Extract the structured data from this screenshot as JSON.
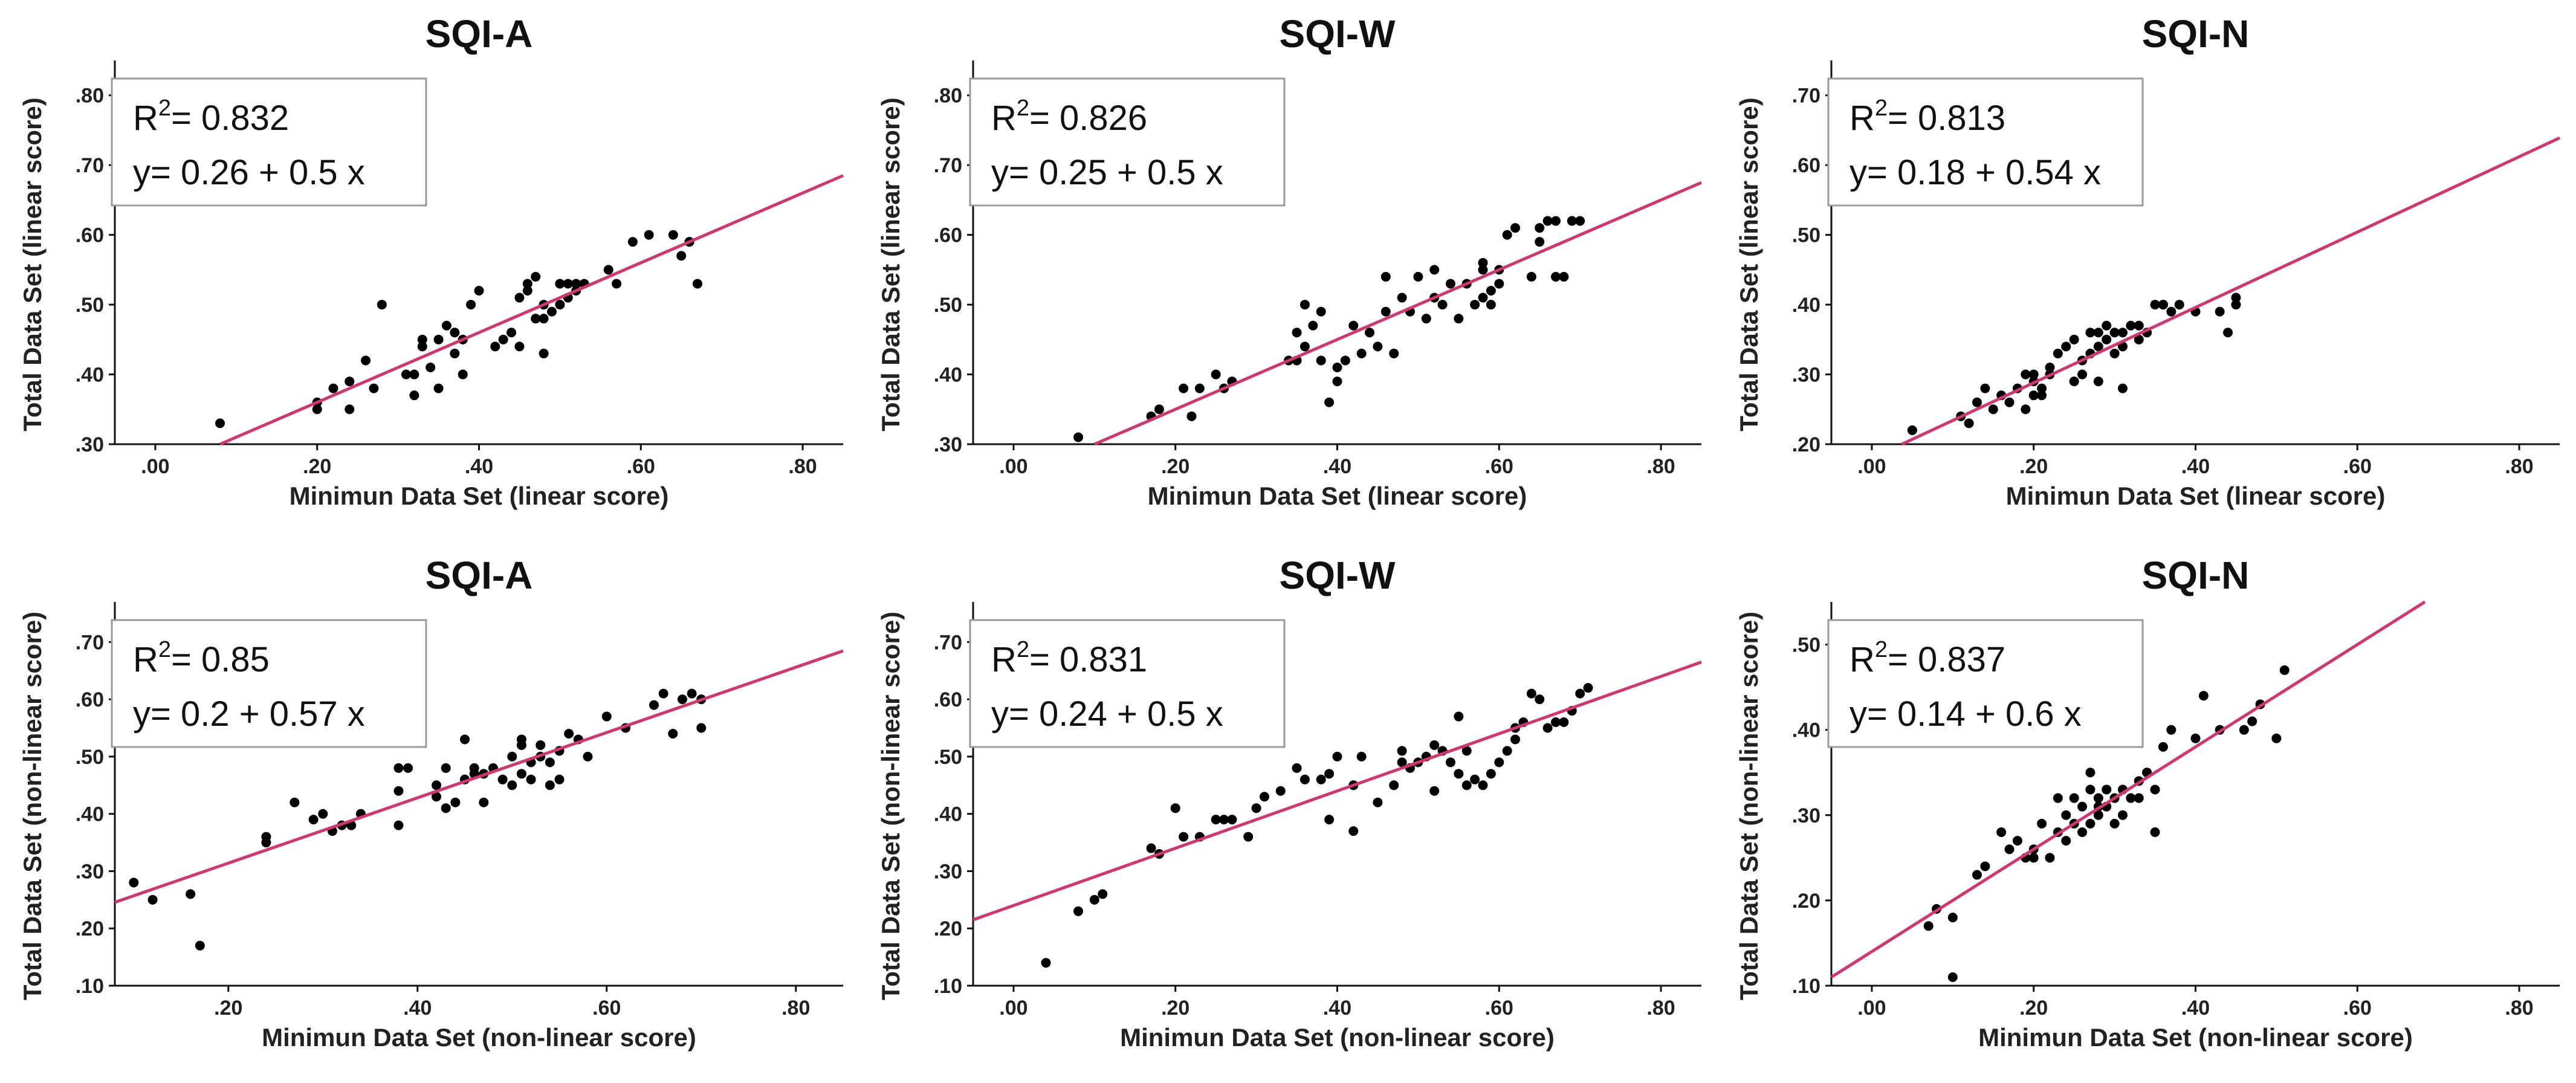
{
  "chart_data": [
    {
      "id": "a",
      "type": "scatter",
      "title": "SQI-A",
      "xlabel": "Minimun Data Set (linear score)",
      "ylabel": "Total Data Set (linear score)",
      "xlim": [
        -0.05,
        0.85
      ],
      "ylim": [
        0.3,
        0.85
      ],
      "xticks": [
        ".00",
        ".20",
        ".40",
        ".60",
        ".80"
      ],
      "xtick_values": [
        0,
        0.2,
        0.4,
        0.6,
        0.8
      ],
      "yticks": [
        ".30",
        ".40",
        ".50",
        ".60",
        ".70",
        ".80"
      ],
      "ytick_values": [
        0.3,
        0.4,
        0.5,
        0.6,
        0.7,
        0.8
      ],
      "r2_label": "R",
      "r2_sup": "2",
      "r2_value": "= 0.832",
      "equation": "y= 0.26 + 0.5 x",
      "fit": {
        "intercept": 0.26,
        "slope": 0.5
      },
      "x": [
        0.08,
        0.2,
        0.2,
        0.22,
        0.24,
        0.24,
        0.26,
        0.27,
        0.28,
        0.31,
        0.32,
        0.32,
        0.33,
        0.33,
        0.34,
        0.35,
        0.35,
        0.36,
        0.37,
        0.37,
        0.38,
        0.38,
        0.39,
        0.4,
        0.42,
        0.43,
        0.44,
        0.45,
        0.45,
        0.46,
        0.46,
        0.47,
        0.47,
        0.48,
        0.48,
        0.48,
        0.49,
        0.5,
        0.5,
        0.51,
        0.51,
        0.52,
        0.52,
        0.53,
        0.56,
        0.57,
        0.59,
        0.61,
        0.64,
        0.65,
        0.66,
        0.66,
        0.67
      ],
      "y": [
        0.33,
        0.35,
        0.36,
        0.38,
        0.35,
        0.39,
        0.42,
        0.38,
        0.5,
        0.4,
        0.4,
        0.37,
        0.44,
        0.45,
        0.41,
        0.45,
        0.38,
        0.47,
        0.43,
        0.46,
        0.4,
        0.45,
        0.5,
        0.52,
        0.44,
        0.45,
        0.46,
        0.51,
        0.44,
        0.53,
        0.52,
        0.54,
        0.48,
        0.5,
        0.43,
        0.48,
        0.49,
        0.5,
        0.53,
        0.51,
        0.53,
        0.52,
        0.53,
        0.53,
        0.55,
        0.53,
        0.59,
        0.6,
        0.6,
        0.57,
        0.59,
        0.59,
        0.53
      ]
    },
    {
      "id": "b",
      "type": "scatter",
      "title": "SQI-W",
      "xlabel": "Minimun Data Set (linear score)",
      "ylabel": "Total Data Set (linear score)",
      "xlim": [
        -0.05,
        0.85
      ],
      "ylim": [
        0.3,
        0.85
      ],
      "xticks": [
        ".00",
        ".20",
        ".40",
        ".60",
        ".80"
      ],
      "xtick_values": [
        0,
        0.2,
        0.4,
        0.6,
        0.8
      ],
      "yticks": [
        ".30",
        ".40",
        ".50",
        ".60",
        ".70",
        ".80"
      ],
      "ytick_values": [
        0.3,
        0.4,
        0.5,
        0.6,
        0.7,
        0.8
      ],
      "r2_label": "R",
      "r2_sup": "2",
      "r2_value": "= 0.826",
      "equation": "y= 0.25 + 0.5 x",
      "fit": {
        "intercept": 0.25,
        "slope": 0.5
      },
      "x": [
        0.08,
        0.17,
        0.18,
        0.21,
        0.22,
        0.23,
        0.25,
        0.26,
        0.27,
        0.34,
        0.35,
        0.35,
        0.36,
        0.36,
        0.37,
        0.38,
        0.38,
        0.39,
        0.4,
        0.4,
        0.41,
        0.42,
        0.43,
        0.44,
        0.45,
        0.46,
        0.46,
        0.47,
        0.48,
        0.49,
        0.5,
        0.51,
        0.52,
        0.52,
        0.53,
        0.54,
        0.55,
        0.56,
        0.57,
        0.58,
        0.58,
        0.58,
        0.59,
        0.59,
        0.6,
        0.6,
        0.61,
        0.62,
        0.64,
        0.65,
        0.65,
        0.66,
        0.67,
        0.67,
        0.68,
        0.69,
        0.7
      ],
      "y": [
        0.31,
        0.34,
        0.35,
        0.38,
        0.34,
        0.38,
        0.4,
        0.38,
        0.39,
        0.42,
        0.46,
        0.42,
        0.5,
        0.44,
        0.47,
        0.42,
        0.49,
        0.36,
        0.41,
        0.39,
        0.42,
        0.47,
        0.43,
        0.46,
        0.44,
        0.54,
        0.49,
        0.43,
        0.51,
        0.49,
        0.54,
        0.48,
        0.55,
        0.51,
        0.5,
        0.53,
        0.48,
        0.53,
        0.5,
        0.51,
        0.55,
        0.56,
        0.52,
        0.5,
        0.55,
        0.53,
        0.6,
        0.61,
        0.54,
        0.59,
        0.61,
        0.62,
        0.62,
        0.54,
        0.54,
        0.62,
        0.62
      ]
    },
    {
      "id": "c",
      "type": "scatter",
      "title": "SQI-N",
      "xlabel": "Minimun Data Set (linear score)",
      "ylabel": "Total Data Set (linear score)",
      "xlim": [
        -0.05,
        0.85
      ],
      "ylim": [
        0.2,
        0.75
      ],
      "xticks": [
        ".00",
        ".20",
        ".40",
        ".60",
        ".80"
      ],
      "xtick_values": [
        0,
        0.2,
        0.4,
        0.6,
        0.8
      ],
      "yticks": [
        ".20",
        ".30",
        ".40",
        ".50",
        ".60",
        ".70"
      ],
      "ytick_values": [
        0.2,
        0.3,
        0.4,
        0.5,
        0.6,
        0.7
      ],
      "r2_label": "R",
      "r2_sup": "2",
      "r2_value": "= 0.813",
      "equation": "y= 0.18 + 0.54 x",
      "fit": {
        "intercept": 0.18,
        "slope": 0.54
      },
      "x": [
        0.05,
        0.11,
        0.12,
        0.13,
        0.14,
        0.15,
        0.16,
        0.17,
        0.18,
        0.19,
        0.19,
        0.2,
        0.2,
        0.2,
        0.21,
        0.21,
        0.22,
        0.22,
        0.23,
        0.24,
        0.25,
        0.25,
        0.26,
        0.26,
        0.27,
        0.27,
        0.28,
        0.28,
        0.28,
        0.29,
        0.29,
        0.3,
        0.3,
        0.31,
        0.31,
        0.31,
        0.32,
        0.33,
        0.33,
        0.34,
        0.35,
        0.36,
        0.36,
        0.37,
        0.38,
        0.4,
        0.43,
        0.44,
        0.45,
        0.45
      ],
      "y": [
        0.22,
        0.24,
        0.23,
        0.26,
        0.28,
        0.25,
        0.27,
        0.26,
        0.28,
        0.3,
        0.25,
        0.27,
        0.3,
        0.29,
        0.27,
        0.28,
        0.3,
        0.31,
        0.33,
        0.34,
        0.29,
        0.35,
        0.32,
        0.3,
        0.33,
        0.36,
        0.34,
        0.36,
        0.29,
        0.35,
        0.37,
        0.36,
        0.33,
        0.34,
        0.28,
        0.36,
        0.37,
        0.35,
        0.37,
        0.36,
        0.4,
        0.4,
        0.4,
        0.39,
        0.4,
        0.39,
        0.39,
        0.36,
        0.4,
        0.41
      ]
    },
    {
      "id": "d",
      "type": "scatter",
      "title": "SQI-A",
      "xlabel": "Minimun Data Set (non-linear score)",
      "ylabel": "Total Data Set (non-linear score)",
      "xlim": [
        0.08,
        0.85
      ],
      "ylim": [
        0.1,
        0.77
      ],
      "xticks": [
        ".20",
        ".40",
        ".60",
        ".80"
      ],
      "xtick_values": [
        0.2,
        0.4,
        0.6,
        0.8
      ],
      "yticks": [
        ".10",
        ".20",
        ".30",
        ".40",
        ".50",
        ".60",
        ".70"
      ],
      "ytick_values": [
        0.1,
        0.2,
        0.3,
        0.4,
        0.5,
        0.6,
        0.7
      ],
      "r2_label": "R",
      "r2_sup": "2",
      "r2_value": "= 0.85",
      "equation": "y= 0.2 + 0.57 x",
      "fit": {
        "intercept": 0.2,
        "slope": 0.57
      },
      "x": [
        0.1,
        0.12,
        0.16,
        0.17,
        0.24,
        0.24,
        0.27,
        0.29,
        0.3,
        0.31,
        0.32,
        0.33,
        0.34,
        0.38,
        0.38,
        0.38,
        0.39,
        0.42,
        0.42,
        0.43,
        0.43,
        0.44,
        0.45,
        0.45,
        0.46,
        0.46,
        0.47,
        0.47,
        0.48,
        0.49,
        0.5,
        0.5,
        0.51,
        0.51,
        0.51,
        0.52,
        0.52,
        0.53,
        0.53,
        0.54,
        0.54,
        0.55,
        0.55,
        0.56,
        0.57,
        0.58,
        0.6,
        0.62,
        0.65,
        0.66,
        0.67,
        0.68,
        0.69,
        0.7,
        0.7
      ],
      "y": [
        0.28,
        0.25,
        0.26,
        0.17,
        0.35,
        0.36,
        0.42,
        0.39,
        0.4,
        0.37,
        0.38,
        0.38,
        0.4,
        0.38,
        0.44,
        0.48,
        0.48,
        0.45,
        0.43,
        0.41,
        0.48,
        0.42,
        0.46,
        0.53,
        0.47,
        0.48,
        0.42,
        0.47,
        0.48,
        0.46,
        0.45,
        0.5,
        0.52,
        0.47,
        0.53,
        0.46,
        0.49,
        0.52,
        0.5,
        0.49,
        0.45,
        0.46,
        0.51,
        0.54,
        0.53,
        0.5,
        0.57,
        0.55,
        0.59,
        0.61,
        0.54,
        0.6,
        0.61,
        0.6,
        0.55
      ]
    },
    {
      "id": "e",
      "type": "scatter",
      "title": "SQI-W",
      "xlabel": "Minimun Data Set (non-linear score)",
      "ylabel": "Total Data Set (non-linear score)",
      "xlim": [
        -0.05,
        0.85
      ],
      "ylim": [
        0.1,
        0.77
      ],
      "xticks": [
        ".00",
        ".20",
        ".40",
        ".60",
        ".80"
      ],
      "xtick_values": [
        0,
        0.2,
        0.4,
        0.6,
        0.8
      ],
      "yticks": [
        ".10",
        ".20",
        ".30",
        ".40",
        ".50",
        ".60",
        ".70"
      ],
      "ytick_values": [
        0.1,
        0.2,
        0.3,
        0.4,
        0.5,
        0.6,
        0.7
      ],
      "r2_label": "R",
      "r2_sup": "2",
      "r2_value": "= 0.831",
      "equation": "y= 0.24 + 0.5 x",
      "fit": {
        "intercept": 0.24,
        "slope": 0.5
      },
      "x": [
        0.04,
        0.08,
        0.1,
        0.11,
        0.17,
        0.18,
        0.2,
        0.21,
        0.23,
        0.25,
        0.26,
        0.27,
        0.29,
        0.3,
        0.31,
        0.33,
        0.35,
        0.36,
        0.38,
        0.39,
        0.39,
        0.4,
        0.42,
        0.42,
        0.43,
        0.45,
        0.47,
        0.48,
        0.48,
        0.49,
        0.5,
        0.51,
        0.52,
        0.52,
        0.53,
        0.54,
        0.55,
        0.55,
        0.56,
        0.56,
        0.57,
        0.58,
        0.59,
        0.6,
        0.61,
        0.62,
        0.62,
        0.63,
        0.64,
        0.65,
        0.66,
        0.67,
        0.68,
        0.69,
        0.7,
        0.71
      ],
      "y": [
        0.14,
        0.23,
        0.25,
        0.26,
        0.34,
        0.33,
        0.41,
        0.36,
        0.36,
        0.39,
        0.39,
        0.39,
        0.36,
        0.41,
        0.43,
        0.44,
        0.48,
        0.46,
        0.46,
        0.39,
        0.47,
        0.5,
        0.37,
        0.45,
        0.5,
        0.42,
        0.45,
        0.49,
        0.51,
        0.48,
        0.49,
        0.5,
        0.44,
        0.52,
        0.51,
        0.49,
        0.47,
        0.57,
        0.45,
        0.51,
        0.46,
        0.45,
        0.47,
        0.49,
        0.51,
        0.53,
        0.55,
        0.56,
        0.61,
        0.6,
        0.55,
        0.56,
        0.56,
        0.58,
        0.61,
        0.62
      ]
    },
    {
      "id": "f",
      "type": "scatter",
      "title": "SQI-N",
      "xlabel": "Minimun Data Set (non-linear score)",
      "ylabel": "Total Data Set (non-linear score)",
      "xlim": [
        -0.05,
        0.85
      ],
      "ylim": [
        0.1,
        0.55
      ],
      "xticks": [
        ".00",
        ".20",
        ".40",
        ".60",
        ".80"
      ],
      "xtick_values": [
        0,
        0.2,
        0.4,
        0.6,
        0.8
      ],
      "yticks": [
        ".10",
        ".20",
        ".30",
        ".40",
        ".50"
      ],
      "ytick_values": [
        0.1,
        0.2,
        0.3,
        0.4,
        0.5
      ],
      "r2_label": "R",
      "r2_sup": "2",
      "r2_value": "= 0.837",
      "equation": "y= 0.14 + 0.6 x",
      "fit": {
        "intercept": 0.14,
        "slope": 0.6
      },
      "x": [
        0.07,
        0.08,
        0.1,
        0.1,
        0.13,
        0.14,
        0.16,
        0.17,
        0.18,
        0.19,
        0.2,
        0.2,
        0.21,
        0.22,
        0.23,
        0.23,
        0.24,
        0.24,
        0.25,
        0.25,
        0.26,
        0.26,
        0.27,
        0.27,
        0.27,
        0.28,
        0.28,
        0.28,
        0.29,
        0.29,
        0.3,
        0.3,
        0.31,
        0.31,
        0.32,
        0.33,
        0.33,
        0.34,
        0.34,
        0.35,
        0.35,
        0.36,
        0.37,
        0.4,
        0.41,
        0.43,
        0.46,
        0.47,
        0.48,
        0.5,
        0.51
      ],
      "y": [
        0.17,
        0.19,
        0.11,
        0.18,
        0.23,
        0.24,
        0.28,
        0.26,
        0.27,
        0.25,
        0.26,
        0.25,
        0.29,
        0.25,
        0.32,
        0.28,
        0.3,
        0.27,
        0.32,
        0.29,
        0.28,
        0.31,
        0.29,
        0.33,
        0.35,
        0.31,
        0.3,
        0.32,
        0.33,
        0.31,
        0.32,
        0.29,
        0.33,
        0.3,
        0.32,
        0.34,
        0.32,
        0.35,
        0.35,
        0.33,
        0.28,
        0.38,
        0.4,
        0.39,
        0.44,
        0.4,
        0.4,
        0.41,
        0.43,
        0.39,
        0.47
      ]
    }
  ]
}
